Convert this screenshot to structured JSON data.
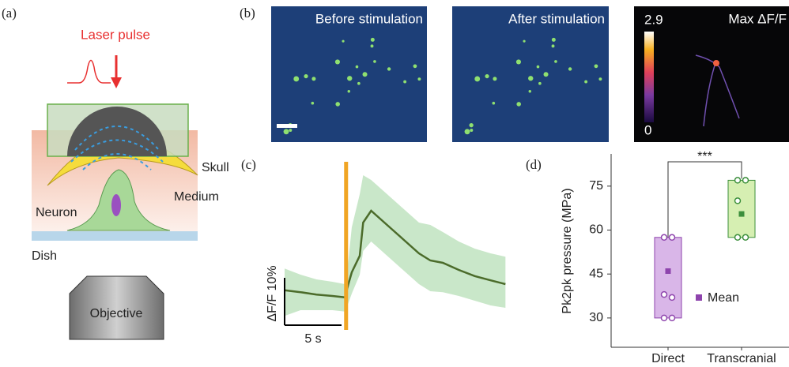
{
  "figure": {
    "a": {
      "label": "(a)",
      "laser": "Laser pulse",
      "skull": "Skull",
      "medium": "Medium",
      "neuron": "Neuron",
      "dish": "Dish",
      "objective": "Objective"
    },
    "b": {
      "label": "(b)",
      "images": [
        "Before stimulation",
        "After stimulation",
        "Max ΔF/F"
      ],
      "colorbar_ticks": [
        0,
        2.9
      ]
    }
  },
  "chart_data": [
    {
      "type": "line",
      "panel_label": "(c)",
      "x": [
        0,
        1.4,
        2.8,
        4.2,
        5.3,
        5.6,
        5.9,
        6.6,
        6.9,
        7.6,
        9.0,
        10.4,
        11.8,
        12.8,
        13.9,
        15.3,
        16.7,
        18.1,
        19.4
      ],
      "mean": {
        "color": "#4b6b2a",
        "values": [
          1.7,
          1.3,
          0.8,
          0.5,
          0.2,
          3,
          5.5,
          9,
          16,
          18.5,
          15.5,
          12.5,
          9.5,
          8,
          7.5,
          6,
          4.7,
          3.8,
          3
        ]
      },
      "band": {
        "color": "#bfe3c0",
        "upper": [
          6.3,
          5,
          4,
          3.5,
          3,
          8,
          15,
          22,
          26,
          25,
          22,
          19,
          16,
          15.5,
          14,
          12,
          10.5,
          9.5,
          8.8
        ],
        "lower": [
          -3.7,
          -2.5,
          -2.5,
          -2.5,
          -2.8,
          -1,
          1,
          5,
          10,
          12,
          9,
          6,
          3,
          1.5,
          1.3,
          0.5,
          -0.5,
          -1.5,
          -2
        ]
      },
      "stimulus": {
        "x": 5.4,
        "color": "#f0a524"
      },
      "scale_bar": {
        "y": {
          "value": 10,
          "label": "ΔF/F 10%"
        },
        "x": {
          "value": 5,
          "label": "5 s"
        }
      }
    },
    {
      "type": "box",
      "panel_label": "(d)",
      "ylabel": "Pk2pk pressure (MPa)",
      "ylim": [
        20,
        86
      ],
      "yticks": [
        30,
        45,
        60,
        75
      ],
      "categories": [
        "Direct",
        "Transcranial"
      ],
      "series": [
        {
          "color": "#8e44ad",
          "fill": "#d9b6e8",
          "box": [
            30,
            57.5
          ],
          "points": [
            57.5,
            57.5,
            38,
            37,
            30,
            30
          ],
          "mean": 46
        },
        {
          "color": "#3c8f3c",
          "fill": "#d6efb2",
          "box": [
            57.5,
            77
          ],
          "points": [
            77,
            77,
            70,
            57.5,
            57.5
          ],
          "mean": 65.5
        }
      ],
      "legend": "Mean",
      "significance": "***"
    }
  ]
}
